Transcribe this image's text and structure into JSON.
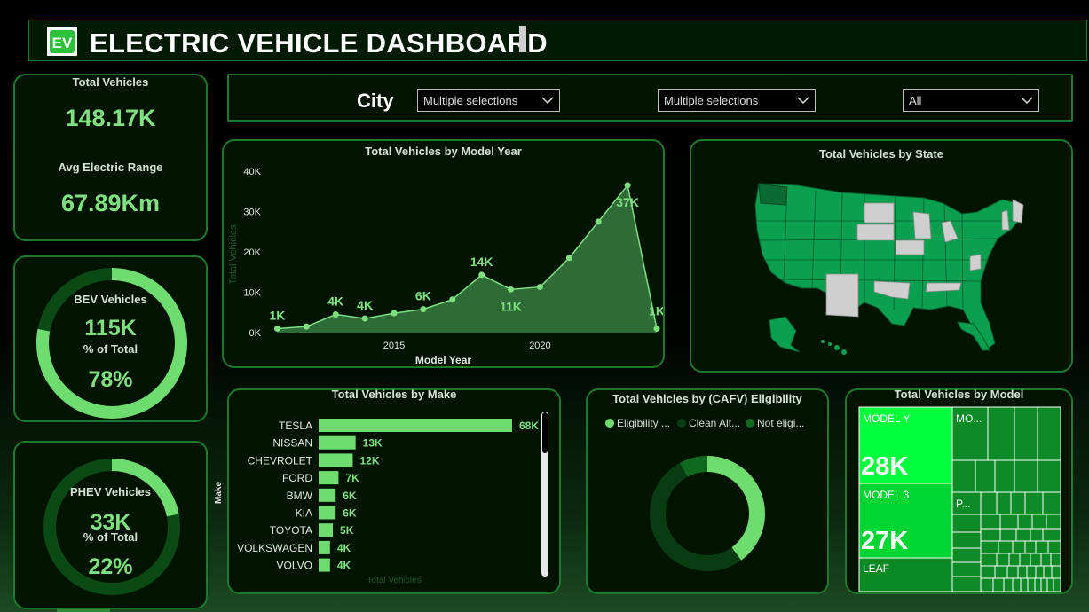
{
  "header": {
    "logo_text": "EV",
    "title": "ELECTRIC VEHICLE DASHBOARD"
  },
  "kpis": {
    "total_vehicles_label": "Total Vehicles",
    "total_vehicles_value": "148.17K",
    "avg_range_label": "Avg Electric Range",
    "avg_range_value": "67.89Km",
    "bev_label": "BEV Vehicles",
    "bev_value": "115K",
    "bev_pct_label": "% of Total",
    "bev_pct": "78%",
    "bev_fraction": 0.78,
    "phev_label": "PHEV Vehicles",
    "phev_value": "33K",
    "phev_pct_label": "% of Total",
    "phev_pct": "22%",
    "phev_fraction": 0.22
  },
  "filters": {
    "city_label": "City",
    "dropdown1": "Multiple selections",
    "dropdown2": "Multiple selections",
    "dropdown3": "All"
  },
  "colors": {
    "accent": "#7ee07e",
    "panel_bg": "#001400",
    "panel_border": "#1a7a2a",
    "map_state": "#0aa050",
    "map_highlight": "#0a6b30",
    "map_grey": "#cfcfcf"
  },
  "chart_data": [
    {
      "id": "model_year",
      "type": "area",
      "title": "Total Vehicles by Model Year",
      "xlabel": "Model Year",
      "ylabel": "Total Vehicles",
      "x": [
        2011,
        2012,
        2013,
        2014,
        2015,
        2016,
        2017,
        2018,
        2019,
        2020,
        2021,
        2022,
        2023,
        2024
      ],
      "y": [
        1000,
        1500,
        4500,
        3500,
        4800,
        5800,
        8200,
        14300,
        10700,
        11300,
        18500,
        27500,
        36500,
        1000
      ],
      "data_labels": [
        {
          "index": 0,
          "text": "1K"
        },
        {
          "index": 2,
          "text": "4K"
        },
        {
          "index": 3,
          "text": "4K"
        },
        {
          "index": 5,
          "text": "6K"
        },
        {
          "index": 7,
          "text": "14K"
        },
        {
          "index": 8,
          "text": "11K"
        },
        {
          "index": 12,
          "text": "37K"
        },
        {
          "index": 13,
          "text": "1K"
        }
      ],
      "yticks": [
        "0K",
        "10K",
        "20K",
        "30K",
        "40K"
      ],
      "ytick_values": [
        0,
        10000,
        20000,
        30000,
        40000
      ],
      "xticks": [
        "2015",
        "2020"
      ],
      "xtick_values": [
        2015,
        2020
      ],
      "ylim": [
        0,
        40000
      ],
      "xlim": [
        2010.5,
        2024
      ]
    },
    {
      "id": "by_make",
      "type": "bar",
      "orientation": "horizontal",
      "title": "Total Vehicles by Make",
      "xlabel": "Total Vehicles",
      "ylabel": "Make",
      "categories": [
        "TESLA",
        "NISSAN",
        "CHEVROLET",
        "FORD",
        "BMW",
        "KIA",
        "TOYOTA",
        "VOLKSWAGEN",
        "VOLVO"
      ],
      "values": [
        68000,
        13000,
        12000,
        7000,
        6000,
        6000,
        5000,
        4000,
        4000
      ],
      "labels": [
        "68K",
        "13K",
        "12K",
        "7K",
        "6K",
        "6K",
        "5K",
        "4K",
        "4K"
      ]
    },
    {
      "id": "cafv",
      "type": "pie",
      "title": "Total Vehicles by (CAFV) Eligibility",
      "legend": [
        "Eligibility ...",
        "Clean Alt...",
        "Not eligi..."
      ],
      "values": [
        0.4,
        0.52,
        0.08
      ],
      "colors": [
        "#6fdc6f",
        "#0a3c12",
        "#0f6a20"
      ]
    },
    {
      "id": "by_model",
      "type": "treemap",
      "title": "Total Vehicles by Model",
      "categories": [
        "MODEL Y",
        "MODEL 3",
        "LEAF",
        "MO...",
        "P..."
      ],
      "labels": [
        "28K",
        "27K",
        "",
        "",
        ""
      ]
    },
    {
      "id": "by_state",
      "type": "map",
      "title": "Total Vehicles by State"
    }
  ]
}
